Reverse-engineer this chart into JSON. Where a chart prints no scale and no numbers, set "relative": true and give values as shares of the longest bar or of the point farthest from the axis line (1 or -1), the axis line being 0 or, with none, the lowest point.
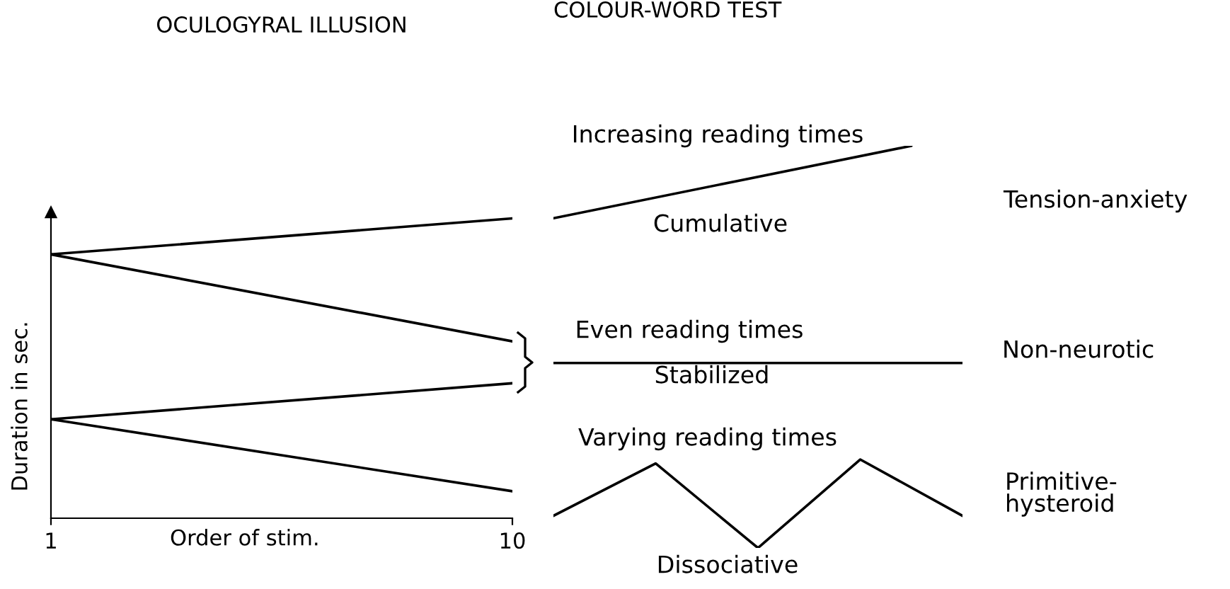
{
  "chart_data": [
    {
      "type": "line",
      "title": "OCULOGYRAL ILLUSION",
      "xlabel": "Order of stim.",
      "ylabel": "Duration in sec.",
      "relative": true,
      "x": [
        1,
        10
      ],
      "xlim": [
        1,
        10
      ],
      "xticks": [
        1,
        10
      ],
      "series": [
        {
          "color": "#000000",
          "values": [
            0.88,
            1.0
          ]
        },
        {
          "color": "#000000",
          "values": [
            0.88,
            0.59
          ]
        },
        {
          "color": "#000000",
          "values": [
            0.33,
            0.45
          ]
        },
        {
          "color": "#000000",
          "values": [
            0.33,
            0.09
          ]
        }
      ]
    },
    {
      "type": "line",
      "title": "COLOUR-WORD TEST",
      "relative": true,
      "categories": [
        null,
        null,
        null,
        null,
        null,
        null,
        null,
        null,
        null
      ],
      "series": [
        {
          "name": "Increasing reading times",
          "color": "#000000",
          "values": [
            0.82,
            null,
            null,
            null,
            null,
            null,
            null,
            1.0,
            null
          ]
        },
        {
          "name": "Even reading times",
          "color": "#000000",
          "values": [
            0.46,
            null,
            null,
            null,
            null,
            null,
            null,
            null,
            0.46
          ]
        },
        {
          "name": "Varying reading times",
          "color": "#000000",
          "values": [
            0.08,
            null,
            0.21,
            null,
            0,
            null,
            0.22,
            null,
            0.08
          ]
        }
      ],
      "annotations": [
        "Cumulative",
        "Stabilized",
        "Dissociative",
        "Tension-anxiety",
        "Non-neurotic",
        "Primitive-\nhysteroid"
      ]
    }
  ]
}
